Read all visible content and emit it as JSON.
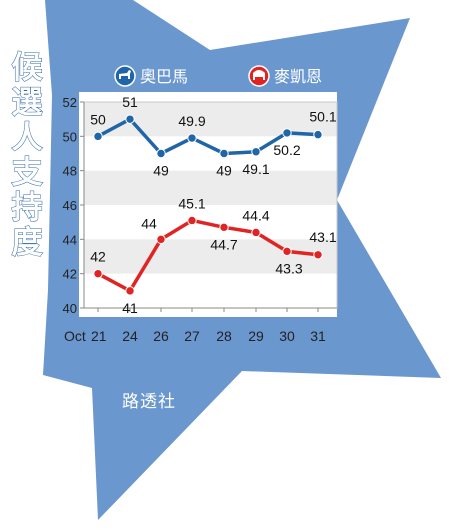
{
  "chart_data": {
    "type": "line",
    "title": "候選人支持度",
    "x_prefix": "Oct",
    "categories": [
      "21",
      "24",
      "26",
      "27",
      "28",
      "29",
      "30",
      "31"
    ],
    "ylim": [
      40,
      52
    ],
    "yticks": [
      40,
      42,
      44,
      46,
      48,
      50,
      52
    ],
    "grid_bands": true,
    "legend_position": "top",
    "series": [
      {
        "name": "奧巴馬",
        "color": "#1f65a8",
        "values": [
          50,
          51,
          49,
          49.9,
          49,
          49.1,
          50.2,
          50.1
        ],
        "labels": [
          "50",
          "51",
          "49",
          "49.9",
          "49",
          "49.1",
          "50.2",
          "50.1"
        ]
      },
      {
        "name": "麥凱恩",
        "color": "#e02424",
        "values": [
          42,
          41,
          44,
          45.1,
          44.7,
          44.4,
          43.3,
          43.1
        ],
        "labels": [
          "42",
          "41",
          "44",
          "45.1",
          "44.7",
          "44.4",
          "43.3",
          "43.1"
        ]
      }
    ]
  },
  "legend": {
    "obama_icon": "donkey-icon",
    "mccain_icon": "elephant-icon"
  },
  "source": "路透社",
  "colors": {
    "star": "#6b97cf",
    "star_dark": "#2e64a8",
    "band": "#ececec"
  }
}
